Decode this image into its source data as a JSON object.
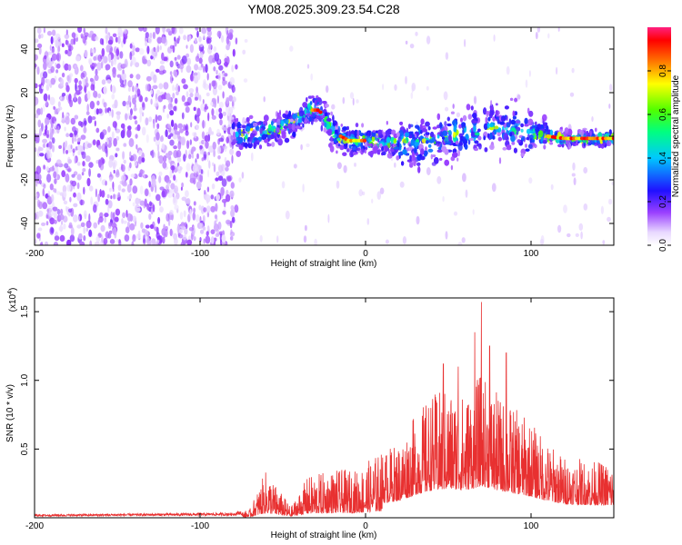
{
  "title": "YM08.2025.309.23.54.C28",
  "chart_data": [
    {
      "type": "heatmap",
      "name": "spectrogram",
      "xlabel": "Height of straight line (km)",
      "ylabel": "Frequency (Hz)",
      "xlim": [
        -200,
        150
      ],
      "ylim": [
        -50,
        50
      ],
      "xticks": [
        -200,
        -100,
        0,
        100
      ],
      "yticks": [
        -40,
        -20,
        0,
        20,
        40
      ],
      "xtick_labels": [
        "-200",
        "-100",
        "0",
        "100"
      ],
      "ytick_labels": [
        "-40",
        "-20",
        "0",
        "20",
        "40"
      ],
      "colorbar": {
        "label": "Normalized spectral amplitude",
        "range": [
          0,
          1
        ],
        "ticks": [
          0,
          0.2,
          0.4,
          0.6,
          0.8
        ],
        "tick_labels": [
          "0.0",
          "0.2",
          "0.4",
          "0.6",
          "0.8"
        ],
        "colormap": "rainbow (white-violet-blue-cyan-green-yellow-red-magenta)"
      },
      "ridge_center": [
        {
          "x": -80,
          "y": 0
        },
        {
          "x": -60,
          "y": 2
        },
        {
          "x": -45,
          "y": 5
        },
        {
          "x": -35,
          "y": 12
        },
        {
          "x": -28,
          "y": 12
        },
        {
          "x": -20,
          "y": 2
        },
        {
          "x": -10,
          "y": -2
        },
        {
          "x": 0,
          "y": -2
        },
        {
          "x": 20,
          "y": -3
        },
        {
          "x": 40,
          "y": -2
        },
        {
          "x": 60,
          "y": 2
        },
        {
          "x": 80,
          "y": 4
        },
        {
          "x": 100,
          "y": 1
        },
        {
          "x": 120,
          "y": -1
        },
        {
          "x": 150,
          "y": -1
        }
      ]
    },
    {
      "type": "line",
      "name": "snr",
      "xlabel": "Height of straight line (km)",
      "ylabel": "SNR (10 * v/v)",
      "scale_label": "(x10",
      "scale_exponent": "4",
      "scale_close": ")",
      "xlim": [
        -200,
        150
      ],
      "ylim": [
        0,
        1.6
      ],
      "xticks": [
        -200,
        -100,
        0,
        100
      ],
      "yticks": [
        0.5,
        1.0,
        1.5
      ],
      "xtick_labels": [
        "-200",
        "-100",
        "0",
        "100"
      ],
      "ytick_labels": [
        "0.5",
        "1.0",
        "1.5"
      ],
      "color": "#e83030",
      "envelope": [
        {
          "x": -200,
          "y": 0.02
        },
        {
          "x": -80,
          "y": 0.03
        },
        {
          "x": -70,
          "y": 0.06
        },
        {
          "x": -60,
          "y": 0.35
        },
        {
          "x": -55,
          "y": 0.25
        },
        {
          "x": -45,
          "y": 0.08
        },
        {
          "x": -35,
          "y": 0.3
        },
        {
          "x": -20,
          "y": 0.35
        },
        {
          "x": -5,
          "y": 0.35
        },
        {
          "x": 5,
          "y": 0.45
        },
        {
          "x": 20,
          "y": 0.55
        },
        {
          "x": 30,
          "y": 0.75
        },
        {
          "x": 40,
          "y": 0.9
        },
        {
          "x": 50,
          "y": 0.95
        },
        {
          "x": 60,
          "y": 0.9
        },
        {
          "x": 70,
          "y": 1.05
        },
        {
          "x": 80,
          "y": 0.9
        },
        {
          "x": 90,
          "y": 0.8
        },
        {
          "x": 100,
          "y": 0.7
        },
        {
          "x": 110,
          "y": 0.55
        },
        {
          "x": 120,
          "y": 0.45
        },
        {
          "x": 135,
          "y": 0.42
        },
        {
          "x": 150,
          "y": 0.4
        }
      ],
      "peaks": [
        {
          "x": 70,
          "y": 1.57
        },
        {
          "x": 66,
          "y": 1.35
        },
        {
          "x": 75,
          "y": 1.25
        },
        {
          "x": 85,
          "y": 1.2
        },
        {
          "x": 47,
          "y": 1.12
        },
        {
          "x": 56,
          "y": 1.1
        }
      ],
      "colors": {
        "line": "#e83030"
      }
    }
  ]
}
